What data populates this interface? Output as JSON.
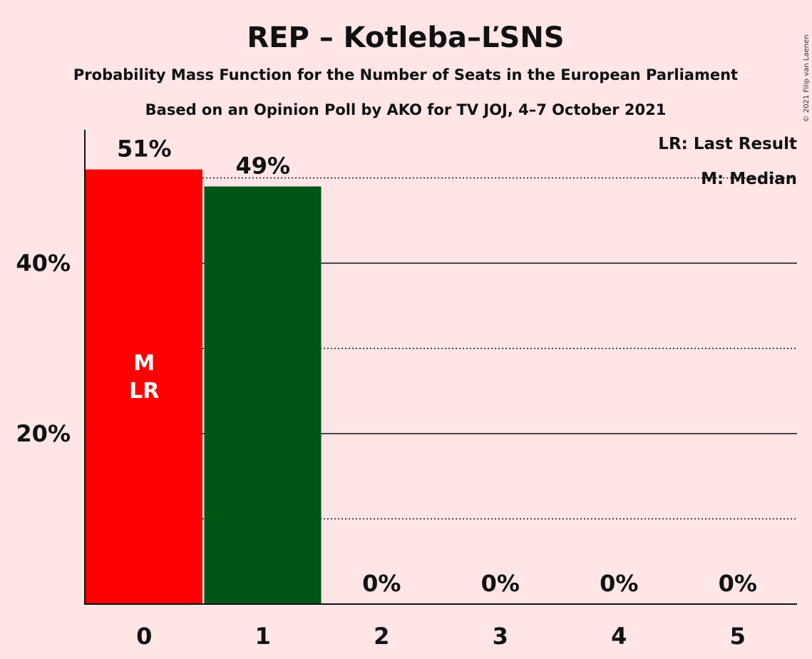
{
  "header": {
    "title": "REP – Kotleba–ĽSNS",
    "subtitle1": "Probability Mass Function for the Number of Seats in the European Parliament",
    "subtitle2": "Based on an Opinion Poll by AKO for TV JOJ, 4–7 October 2021"
  },
  "legend": {
    "last_result": "LR: Last Result",
    "median": "M: Median"
  },
  "copyright": "© 2021 Filip van Laenen",
  "colors": {
    "background": "#FFE5E5",
    "bar_last_result": "#FF0000",
    "bar_other": "#005615",
    "axis": "#111111"
  },
  "chart_data": {
    "type": "bar",
    "title": "REP – Kotleba–ĽSNS",
    "subtitle": "Probability Mass Function for the Number of Seats in the European Parliament",
    "categories": [
      "0",
      "1",
      "2",
      "3",
      "4",
      "5"
    ],
    "values": [
      51,
      49,
      0,
      0,
      0,
      0
    ],
    "value_labels": [
      "51%",
      "49%",
      "0%",
      "0%",
      "0%",
      "0%"
    ],
    "ylim": [
      0,
      55
    ],
    "yticks_major": [
      20,
      40
    ],
    "ytick_labels": [
      "20%",
      "40%"
    ],
    "gridlines_dotted": [
      10,
      30,
      50
    ],
    "gridlines_solid": [
      20,
      40
    ],
    "median_seat": "0",
    "last_result_seat": "0",
    "in_bar_labels": [
      "M",
      "LR"
    ],
    "xlabel": "",
    "ylabel": "",
    "legend_position": "top-right",
    "grid": true
  }
}
